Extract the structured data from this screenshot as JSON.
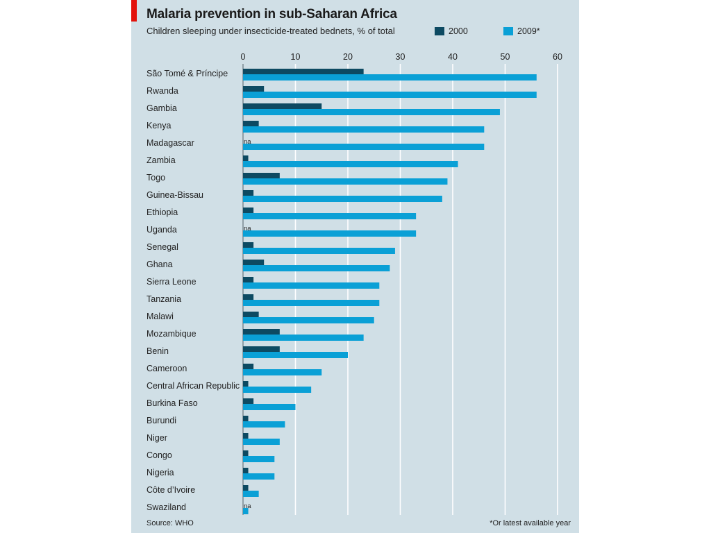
{
  "chart_data": {
    "type": "bar",
    "orientation": "horizontal",
    "title": "Malaria prevention in sub-Saharan Africa",
    "subtitle": "Children sleeping under insecticide-treated bednets, % of total",
    "xlim": [
      0,
      60
    ],
    "ticks": [
      "0",
      "10",
      "20",
      "30",
      "40",
      "50",
      "60"
    ],
    "grid": true,
    "legend_position": "top-right",
    "categories": [
      "São Tomé & Príncipe",
      "Rwanda",
      "Gambia",
      "Kenya",
      "Madagascar",
      "Zambia",
      "Togo",
      "Guinea-Bissau",
      "Ethiopia",
      "Uganda",
      "Senegal",
      "Ghana",
      "Sierra Leone",
      "Tanzania",
      "Malawi",
      "Mozambique",
      "Benin",
      "Cameroon",
      "Central African Republic",
      "Burkina Faso",
      "Burundi",
      "Niger",
      "Congo",
      "Nigeria",
      "Côte d’Ivoire",
      "Swaziland"
    ],
    "series": [
      {
        "name": "2000",
        "color": "#0d4a62",
        "values": [
          23,
          4,
          15,
          3,
          null,
          1,
          7,
          2,
          2,
          null,
          2,
          4,
          2,
          2,
          3,
          7,
          7,
          2,
          1,
          2,
          1,
          1,
          1,
          1,
          1,
          null
        ]
      },
      {
        "name": "2009*",
        "color": "#0aa0d6",
        "values": [
          56,
          56,
          49,
          46,
          46,
          41,
          39,
          38,
          33,
          33,
          29,
          28,
          26,
          26,
          25,
          23,
          20,
          15,
          13,
          10,
          8,
          7,
          6,
          6,
          3,
          1
        ]
      }
    ],
    "na_label": "na"
  },
  "source": "Source: WHO",
  "footnote": "*Or latest available year",
  "colors": {
    "panel": "#d0dfe6",
    "accent_red": "#e3120b",
    "grid": "#ffffff",
    "axis": "#7a8a92"
  }
}
